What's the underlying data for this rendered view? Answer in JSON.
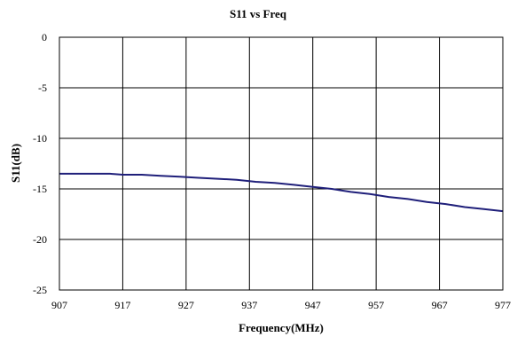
{
  "chart_data": {
    "type": "line",
    "title": "S11 vs Freq",
    "xlabel": "Frequency(MHz)",
    "ylabel": "S11(dB)",
    "xlim": [
      907,
      977
    ],
    "ylim": [
      -25,
      0
    ],
    "x_ticks": [
      907,
      917,
      927,
      937,
      947,
      957,
      967,
      977
    ],
    "y_ticks": [
      0,
      -5,
      -10,
      -15,
      -20,
      -25
    ],
    "grid": true,
    "legend": "none",
    "series": [
      {
        "color": "#1f1f7a",
        "x": [
          907,
          910,
          913,
          915,
          917,
          920,
          923,
          926,
          929,
          932,
          935,
          938,
          941,
          944,
          947,
          950,
          953,
          956,
          959,
          962,
          965,
          968,
          971,
          974,
          977
        ],
        "y": [
          -13.5,
          -13.5,
          -13.5,
          -13.5,
          -13.6,
          -13.6,
          -13.7,
          -13.8,
          -13.9,
          -14.0,
          -14.1,
          -14.3,
          -14.4,
          -14.6,
          -14.8,
          -15.0,
          -15.3,
          -15.5,
          -15.8,
          -16.0,
          -16.3,
          -16.5,
          -16.8,
          -17.0,
          -17.2
        ]
      }
    ]
  }
}
